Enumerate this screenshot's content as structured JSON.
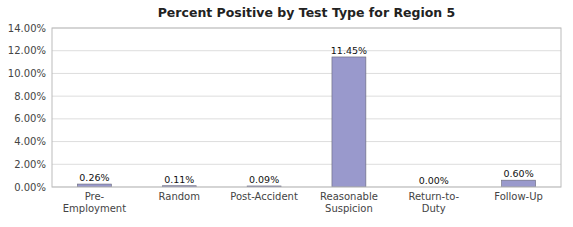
{
  "chart_data": {
    "type": "bar",
    "title": "Percent Positive by Test Type for Region 5",
    "categories": [
      "Pre-\nEmployment",
      "Random",
      "Post-Accident",
      "Reasonable\nSuspicion",
      "Return-to-\nDuty",
      "Follow-Up"
    ],
    "values": [
      0.0026,
      0.0011,
      0.0009,
      0.1145,
      0.0,
      0.006
    ],
    "value_labels": [
      "0.26%",
      "0.11%",
      "0.09%",
      "11.45%",
      "0.00%",
      "0.60%"
    ],
    "data_labels": true,
    "color": "#9999CC",
    "ylim": [
      0,
      0.14
    ],
    "yticks": [
      {
        "value": 0.0,
        "label": "0.00%"
      },
      {
        "value": 0.02,
        "label": "2.00%"
      },
      {
        "value": 0.04,
        "label": "4.00%"
      },
      {
        "value": 0.06,
        "label": "6.00%"
      },
      {
        "value": 0.08,
        "label": "8.00%"
      },
      {
        "value": 0.1,
        "label": "10.00%"
      },
      {
        "value": 0.12,
        "label": "12.00%"
      },
      {
        "value": 0.14,
        "label": "14.00%"
      }
    ],
    "grid": true
  }
}
